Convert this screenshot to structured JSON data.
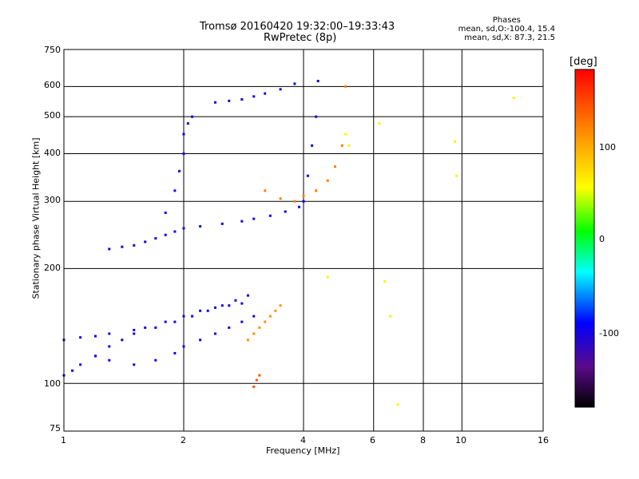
{
  "title_line1": "Tromsø 20160420 19:32:00–19:33:43",
  "title_line2": "RwPretec (8p)",
  "phases_header": "Phases",
  "phases_o": "mean, sd,O:-100.4, 15.4",
  "phases_x": "mean, sd,X:  87.3, 21.5",
  "colorbar_unit": "[deg]",
  "colorbar_ticks": [
    "100",
    "0",
    "-100"
  ],
  "chart_data": {
    "type": "scatter",
    "xlabel": "Frequency [MHz]",
    "ylabel": "Stationary phase Virtual Height [km]",
    "x_scale": "log",
    "y_scale": "log",
    "xlim": [
      1,
      16
    ],
    "ylim": [
      75,
      750
    ],
    "x_ticks": [
      "1",
      "2",
      "4",
      "6",
      "8",
      "10",
      "16"
    ],
    "y_ticks": [
      "75",
      "100",
      "200",
      "300",
      "400",
      "500",
      "600",
      "750"
    ],
    "grid": true,
    "colorbar_range": [
      -180,
      180
    ],
    "clusters": [
      {
        "x": [
          1.0,
          1.05,
          1.1,
          1.2,
          1.3,
          1.4,
          1.5,
          1.6,
          1.8,
          2.0,
          2.2,
          2.4,
          2.6,
          2.8
        ],
        "y": [
          105,
          108,
          112,
          118,
          125,
          130,
          135,
          140,
          145,
          150,
          155,
          158,
          160,
          162
        ],
        "phase": -100
      },
      {
        "x": [
          1.0,
          1.1,
          1.2,
          1.3,
          1.5,
          1.7,
          1.9,
          2.1,
          2.3,
          2.5,
          2.7,
          2.9
        ],
        "y": [
          130,
          132,
          133,
          135,
          138,
          140,
          145,
          150,
          155,
          160,
          165,
          170
        ],
        "phase": -100
      },
      {
        "x": [
          1.2,
          1.3,
          1.5,
          1.7,
          1.9,
          2.0,
          2.2,
          2.4,
          2.6,
          2.8,
          3.0
        ],
        "y": [
          118,
          115,
          112,
          115,
          120,
          125,
          130,
          135,
          140,
          145,
          150
        ],
        "phase": -100
      },
      {
        "x": [
          1.3,
          1.4,
          1.5,
          1.6,
          1.7,
          1.8,
          1.9,
          2.0,
          2.2,
          2.5,
          2.8,
          3.0,
          3.3,
          3.6,
          3.9,
          4.0
        ],
        "y": [
          225,
          228,
          230,
          235,
          240,
          245,
          250,
          255,
          258,
          262,
          266,
          270,
          275,
          282,
          290,
          300
        ],
        "phase": -100
      },
      {
        "x": [
          3.2,
          3.5,
          3.8,
          4.0,
          4.3,
          4.6,
          4.8,
          5.0,
          5.1
        ],
        "y": [
          320,
          305,
          300,
          310,
          320,
          340,
          370,
          420,
          600
        ],
        "phase": 120
      },
      {
        "x": [
          1.8,
          1.9,
          1.95,
          2.0,
          2.0,
          2.05,
          2.1
        ],
        "y": [
          280,
          320,
          360,
          400,
          450,
          480,
          500
        ],
        "phase": -100
      },
      {
        "x": [
          2.4,
          2.6,
          2.8,
          3.0,
          3.2,
          3.5,
          3.8
        ],
        "y": [
          545,
          550,
          555,
          565,
          575,
          590,
          610
        ],
        "phase": -100
      },
      {
        "x": [
          4.0,
          4.1,
          4.2,
          4.3,
          4.35
        ],
        "y": [
          300,
          350,
          420,
          500,
          620
        ],
        "phase": -100
      },
      {
        "x": [
          2.9,
          3.0,
          3.1,
          3.2,
          3.3,
          3.4,
          3.5
        ],
        "y": [
          130,
          135,
          140,
          145,
          150,
          155,
          160
        ],
        "phase": 110
      },
      {
        "x": [
          3.0,
          3.05,
          3.1
        ],
        "y": [
          98,
          102,
          105
        ],
        "phase": 140
      },
      {
        "x": [
          4.6,
          5.1,
          5.2,
          6.2,
          6.4,
          6.6,
          6.9,
          9.6,
          9.7,
          13.5
        ],
        "y": [
          190,
          450,
          420,
          480,
          185,
          150,
          88,
          430,
          350,
          560
        ],
        "phase": 60
      }
    ]
  }
}
